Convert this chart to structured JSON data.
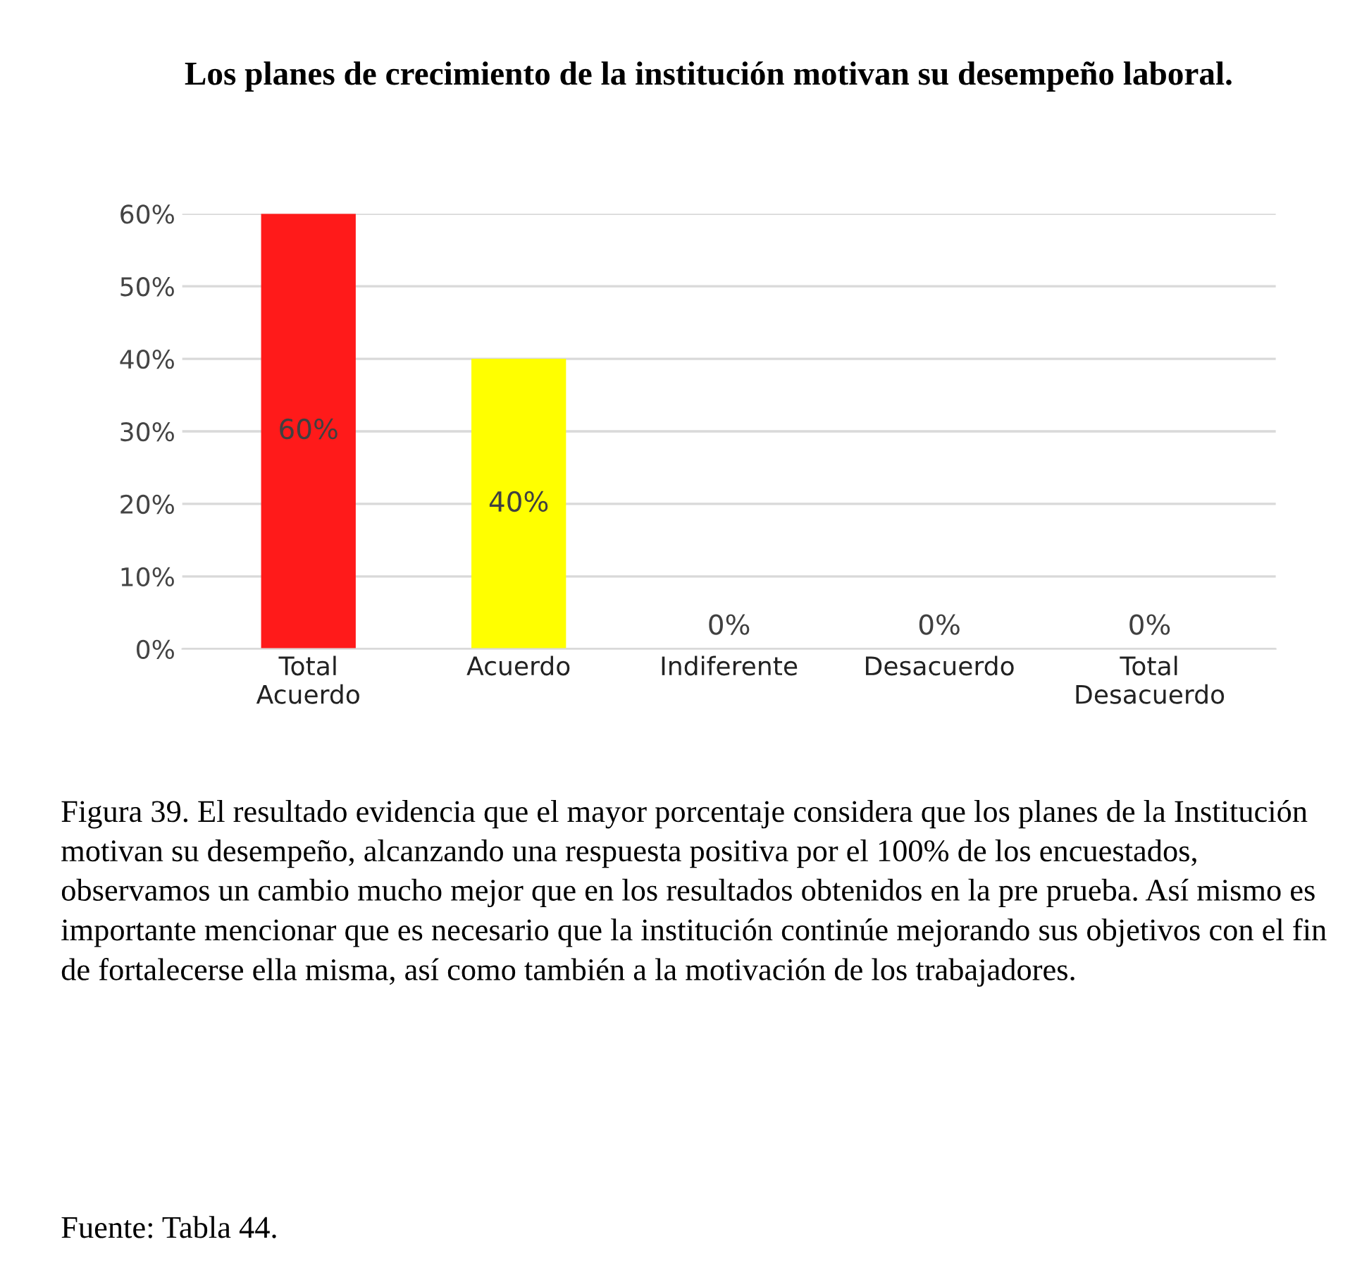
{
  "chart_data": {
    "type": "bar",
    "title": "Los planes de crecimiento de la institución motivan su desempeño laboral.",
    "categories": [
      "Total\nAcuerdo",
      "Acuerdo",
      "Indiferente",
      "Desacuerdo",
      "Total\nDesacuerdo"
    ],
    "values": [
      60,
      40,
      0,
      0,
      0
    ],
    "colors": [
      "#ff1a1a",
      "#ffff00",
      "#7030a0",
      "#76a600",
      "#0090c0"
    ],
    "value_labels": [
      "60%",
      "40%",
      "0%",
      "0%",
      "0%"
    ],
    "ylim": [
      0,
      60
    ],
    "yticks": [
      {
        "value": 0,
        "label": "0%"
      },
      {
        "value": 10,
        "label": "10%"
      },
      {
        "value": 20,
        "label": "20%"
      },
      {
        "value": 30,
        "label": "30%"
      },
      {
        "value": 40,
        "label": "40%"
      },
      {
        "value": 50,
        "label": "50%"
      },
      {
        "value": 60,
        "label": "60%"
      }
    ],
    "grid": "y",
    "annotations": [
      "Figura 39. El resultado evidencia que el mayor porcentaje considera que los planes de la Institución motivan su desempeño, alcanzando una respuesta positiva por el 100% de los encuestados, observamos un cambio mucho mejor que en los resultados obtenidos en la pre prueba. Así mismo es importante mencionar que es necesario que la institución continúe mejorando sus objetivos con el fin de fortalecerse ella misma, así como también a la motivación de los trabajadores.",
      "Fuente: Tabla 44."
    ]
  }
}
